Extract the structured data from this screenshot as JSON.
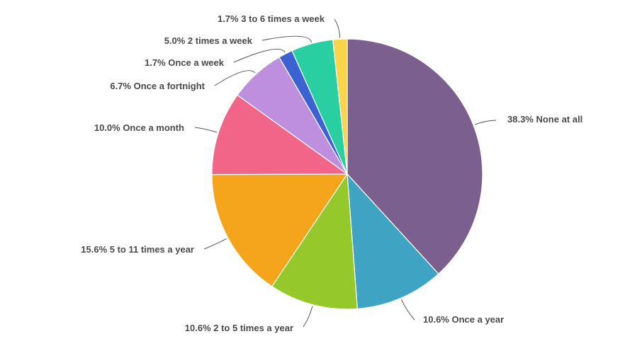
{
  "chart_data": {
    "type": "pie",
    "title": "",
    "slices": [
      {
        "label": "None at all",
        "value": 38.3,
        "color": "#7b5f8f"
      },
      {
        "label": "Once a year",
        "value": 10.6,
        "color": "#3fa3c4"
      },
      {
        "label": "2 to 5 times a year",
        "value": 10.6,
        "color": "#94c82b"
      },
      {
        "label": "5 to 11 times a year",
        "value": 15.6,
        "color": "#f4a51c"
      },
      {
        "label": "Once a month",
        "value": 10.0,
        "color": "#f06588"
      },
      {
        "label": "Once a fortnight",
        "value": 6.7,
        "color": "#bd8fdc"
      },
      {
        "label": "Once a week",
        "value": 1.7,
        "color": "#3c62d2"
      },
      {
        "label": "2 times a week",
        "value": 5.0,
        "color": "#2acfa1"
      },
      {
        "label": "3 to 6 times a week",
        "value": 1.7,
        "color": "#fcd44a"
      }
    ],
    "display_labels": [
      "38.3% None at all",
      "10.6% Once a year",
      "10.6% 2 to 5 times a year",
      "15.6% 5 to 11 times a year",
      "10.0% Once a month",
      "6.7% Once a fortnight",
      "1.7% Once a week",
      "5.0% 2 times a week",
      "1.7% 3 to 6 times a week"
    ],
    "legend": "none",
    "start": "top, clockwise"
  }
}
